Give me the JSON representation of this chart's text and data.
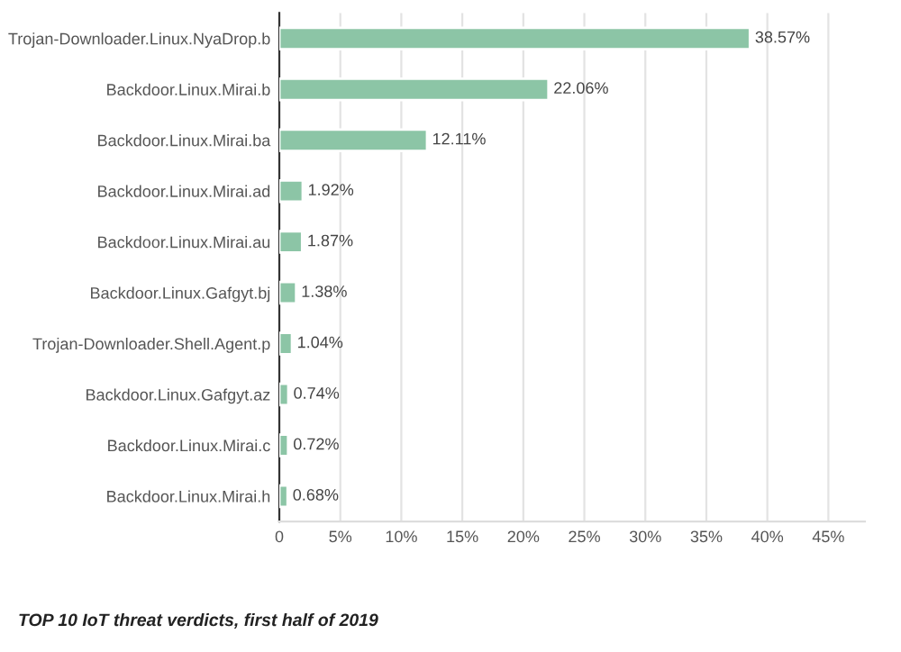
{
  "chart_data": {
    "type": "bar",
    "orientation": "horizontal",
    "title": "TOP 10 IoT threat verdicts, first half of 2019",
    "categories": [
      "Trojan-Downloader.Linux.NyaDrop.b",
      "Backdoor.Linux.Mirai.b",
      "Backdoor.Linux.Mirai.ba",
      "Backdoor.Linux.Mirai.ad",
      "Backdoor.Linux.Mirai.au",
      "Backdoor.Linux.Gafgyt.bj",
      "Trojan-Downloader.Shell.Agent.p",
      "Backdoor.Linux.Gafgyt.az",
      "Backdoor.Linux.Mirai.c",
      "Backdoor.Linux.Mirai.h"
    ],
    "values": [
      38.57,
      22.06,
      12.11,
      1.92,
      1.87,
      1.38,
      1.04,
      0.74,
      0.72,
      0.68
    ],
    "value_labels": [
      "38.57%",
      "22.06%",
      "12.11%",
      "1.92%",
      "1.87%",
      "1.38%",
      "1.04%",
      "0.74%",
      "0.72%",
      "0.68%"
    ],
    "color": "#8cc5a6",
    "xlim": [
      0,
      48
    ],
    "xticks": [
      0,
      {
        "value": 5,
        "label": "5%"
      },
      {
        "value": 10,
        "label": "10%"
      },
      {
        "value": 15,
        "label": "15%"
      },
      {
        "value": 20,
        "label": "20%"
      },
      {
        "value": 25,
        "label": "25%"
      },
      {
        "value": 30,
        "label": "30%"
      },
      {
        "value": 35,
        "label": "35%"
      },
      {
        "value": 40,
        "label": "40%"
      },
      {
        "value": 45,
        "label": "45%"
      }
    ],
    "grid": "x"
  }
}
